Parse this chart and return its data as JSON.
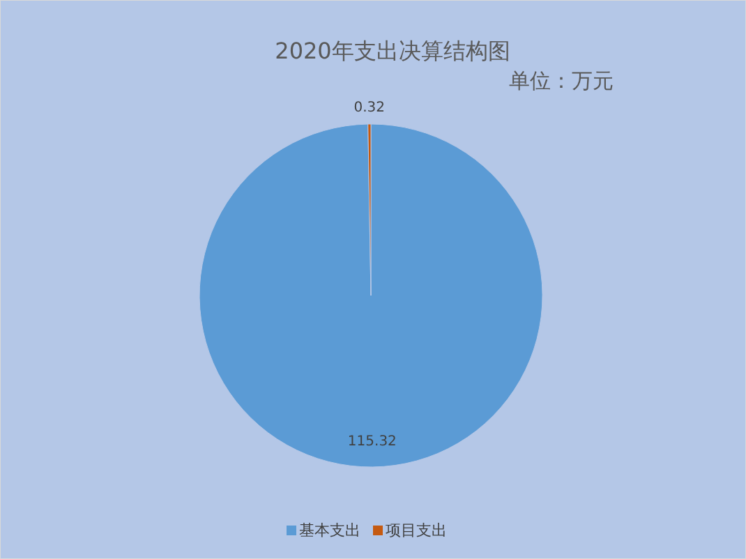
{
  "chart_data": {
    "type": "pie",
    "title": "2020年支出决算结构图",
    "subtitle": "单位：万元",
    "categories": [
      "基本支出",
      "项目支出"
    ],
    "values": [
      115.32,
      0.32
    ],
    "colors": [
      "#5b9bd5",
      "#c55a11"
    ],
    "data_labels": true,
    "legend": "bottom"
  }
}
